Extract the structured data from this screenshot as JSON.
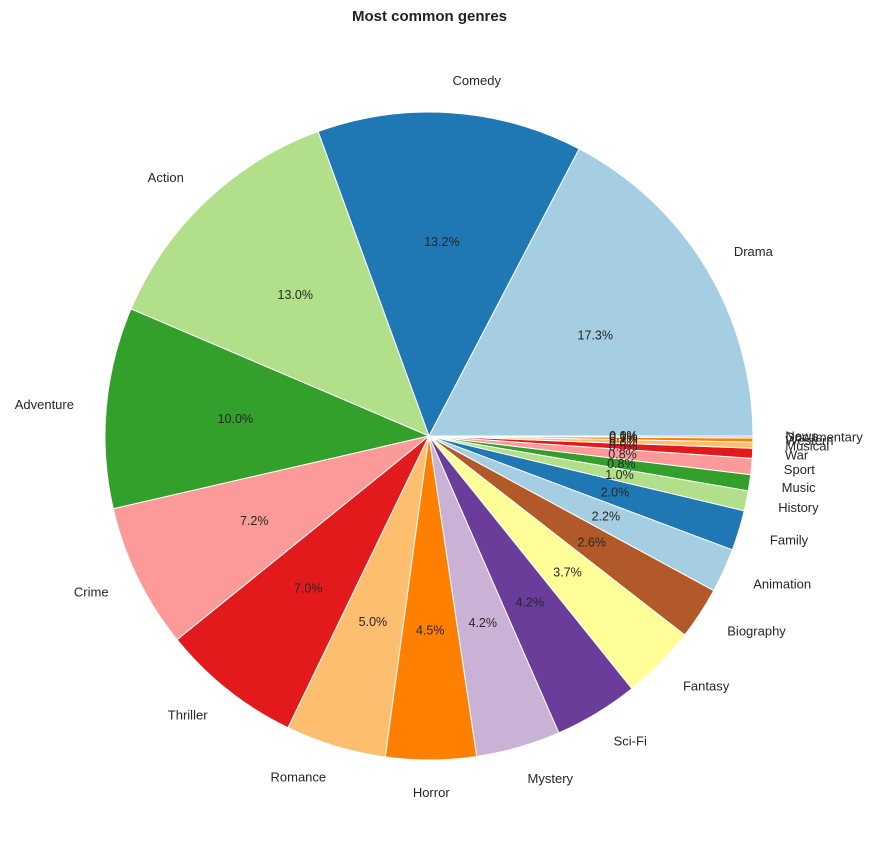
{
  "chart_data": {
    "type": "pie",
    "title": "Most common genres",
    "start_angle_deg": 0,
    "direction": "counterclockwise",
    "slices": [
      {
        "label": "Drama",
        "value": 17.3,
        "pct_label": "17.3%",
        "color": "#a6cee3"
      },
      {
        "label": "Comedy",
        "value": 13.2,
        "pct_label": "13.2%",
        "color": "#1f78b4"
      },
      {
        "label": "Action",
        "value": 13.0,
        "pct_label": "13.0%",
        "color": "#b2df8a"
      },
      {
        "label": "Adventure",
        "value": 10.0,
        "pct_label": "10.0%",
        "color": "#33a02c"
      },
      {
        "label": "Crime",
        "value": 7.2,
        "pct_label": "7.2%",
        "color": "#fb9a99"
      },
      {
        "label": "Thriller",
        "value": 7.0,
        "pct_label": "7.0%",
        "color": "#e31a1c"
      },
      {
        "label": "Romance",
        "value": 5.0,
        "pct_label": "5.0%",
        "color": "#fdbf6f"
      },
      {
        "label": "Horror",
        "value": 4.5,
        "pct_label": "4.5%",
        "color": "#ff7f00"
      },
      {
        "label": "Mystery",
        "value": 4.2,
        "pct_label": "4.2%",
        "color": "#cab2d6"
      },
      {
        "label": "Sci-Fi",
        "value": 4.2,
        "pct_label": "4.2%",
        "color": "#6a3d9a"
      },
      {
        "label": "Fantasy",
        "value": 3.7,
        "pct_label": "3.7%",
        "color": "#ffff99"
      },
      {
        "label": "Biography",
        "value": 2.6,
        "pct_label": "2.6%",
        "color": "#b15928"
      },
      {
        "label": "Animation",
        "value": 2.2,
        "pct_label": "2.2%",
        "color": "#a6cee3"
      },
      {
        "label": "Family",
        "value": 2.0,
        "pct_label": "2.0%",
        "color": "#1f78b4"
      },
      {
        "label": "History",
        "value": 1.0,
        "pct_label": "1.0%",
        "color": "#b2df8a"
      },
      {
        "label": "Music",
        "value": 0.8,
        "pct_label": "0.8%",
        "color": "#33a02c"
      },
      {
        "label": "Sport",
        "value": 0.8,
        "pct_label": "0.8%",
        "color": "#fb9a99"
      },
      {
        "label": "War",
        "value": 0.5,
        "pct_label": "0.5%",
        "color": "#e31a1c"
      },
      {
        "label": "Musical",
        "value": 0.3,
        "pct_label": "0.3%",
        "color": "#fdbf6f"
      },
      {
        "label": "Western",
        "value": 0.2,
        "pct_label": "0.2%",
        "color": "#ff7f00"
      },
      {
        "label": "Documentary",
        "value": 0.1,
        "pct_label": "0.1%",
        "color": "#cab2d6"
      },
      {
        "label": "News",
        "value": 0.0,
        "pct_label": "0.0%",
        "color": "#6a3d9a"
      }
    ]
  }
}
